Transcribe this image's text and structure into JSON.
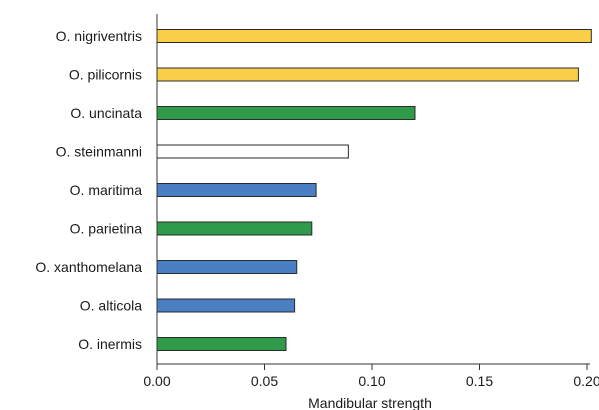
{
  "chart_data": {
    "type": "bar",
    "orientation": "horizontal",
    "categories": [
      "O. nigriventris",
      "O. pilicornis",
      "O. uncinata",
      "O. steinmanni",
      "O. maritima",
      "O. parietina",
      "O. xanthomelana",
      "O. alticola",
      "O. inermis"
    ],
    "values": [
      0.202,
      0.196,
      0.12,
      0.089,
      0.074,
      0.072,
      0.065,
      0.064,
      0.06
    ],
    "bar_colors": [
      "#f9cf4a",
      "#f9cf4a",
      "#2f9a4a",
      "#ffffff",
      "#4a7fc4",
      "#2f9a4a",
      "#4a7fc4",
      "#4a7fc4",
      "#2f9a4a"
    ],
    "xlim": [
      0,
      0.2
    ],
    "xticks": [
      "0.00",
      "0.05",
      "0.10",
      "0.15",
      "0.20"
    ],
    "xlabel": "Mandibular strength",
    "ylabel": "",
    "title": "",
    "grid": false
  }
}
